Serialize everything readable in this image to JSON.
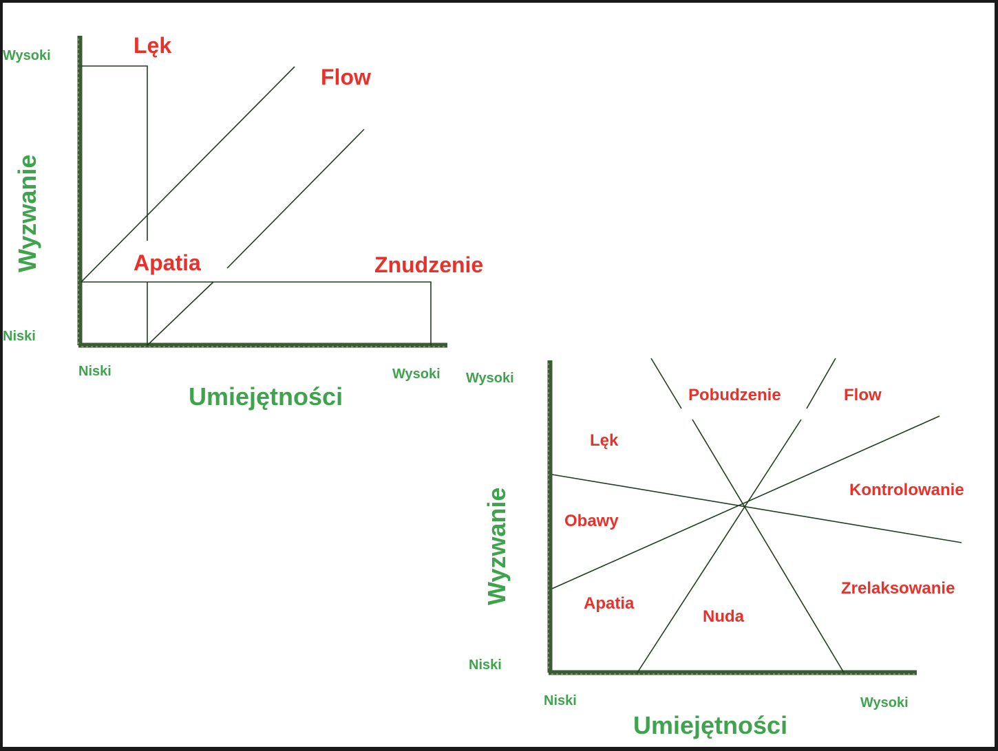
{
  "colors": {
    "axis_text": "#3fa34d",
    "region_text": "#e8312a",
    "lines": "#1f3d1f",
    "axis": "#3c5a34"
  },
  "diagram1": {
    "y_axis_title": "Wyzwanie",
    "x_axis_title": "Umiejętności",
    "y_high": "Wysoki",
    "y_low": "Niski",
    "x_low": "Niski",
    "x_high": "Wysoki",
    "regions": {
      "lek": "Lęk",
      "flow": "Flow",
      "apatia": "Apatia",
      "znudzenie": "Znudzenie"
    }
  },
  "diagram2": {
    "y_axis_title": "Wyzwanie",
    "x_axis_title": "Umiejętności",
    "y_high": "Wysoki",
    "y_low": "Niski",
    "x_low": "Niski",
    "x_high": "Wysoki",
    "regions": {
      "pobudzenie": "Pobudzenie",
      "flow": "Flow",
      "lek": "Lęk",
      "kontrolowanie": "Kontrolowanie",
      "obawy": "Obawy",
      "zrelaksowanie": "Zrelaksowanie",
      "apatia": "Apatia",
      "nuda": "Nuda"
    }
  }
}
